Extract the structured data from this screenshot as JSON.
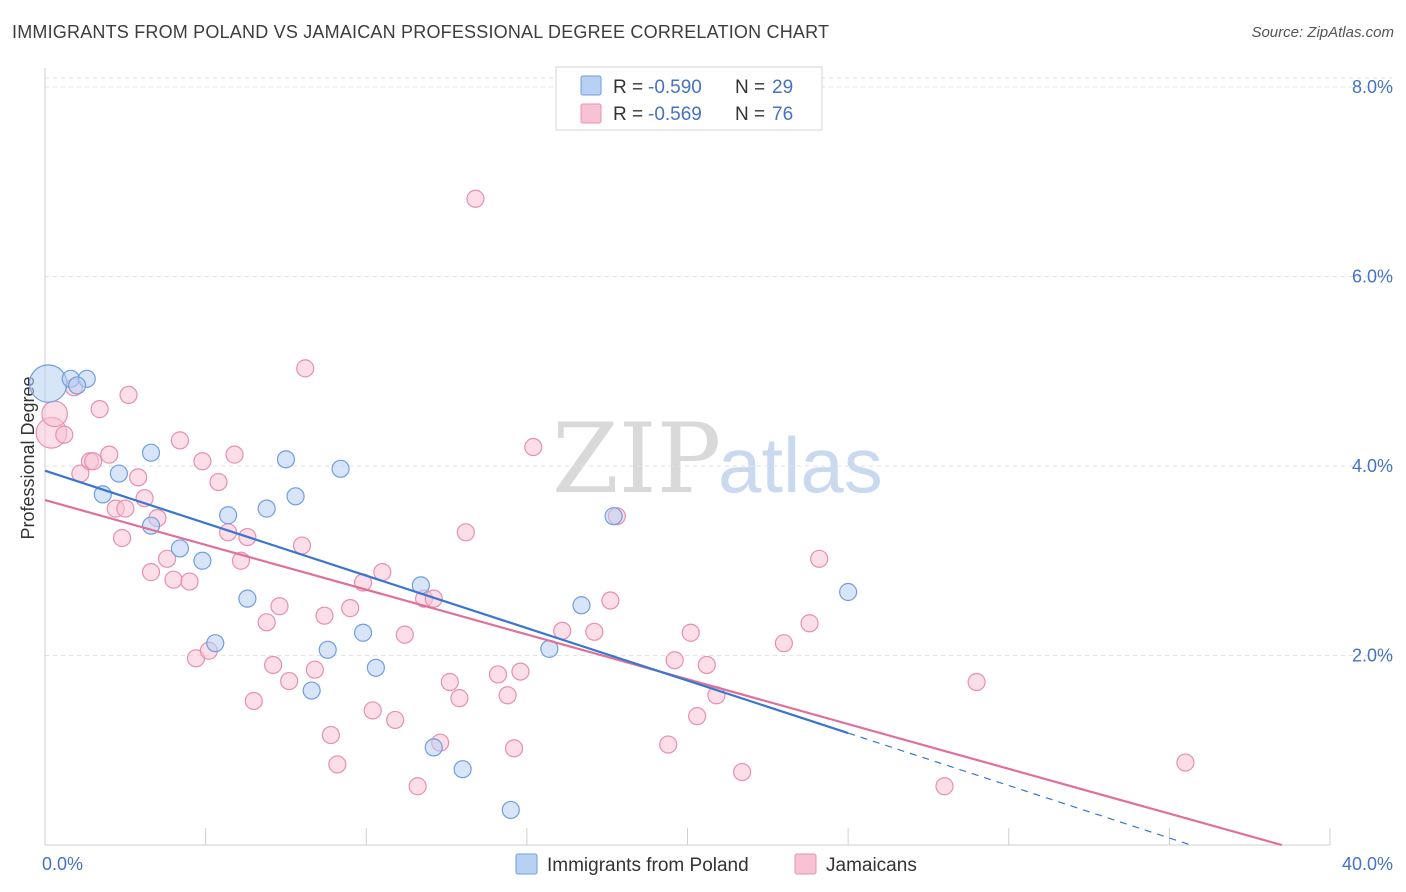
{
  "header": {
    "title": "IMMIGRANTS FROM POLAND VS JAMAICAN PROFESSIONAL DEGREE CORRELATION CHART",
    "source": "Source: ZipAtlas.com"
  },
  "watermark": {
    "zip": "ZIP",
    "atlas": "atlas"
  },
  "legend_top": {
    "rows": [
      {
        "r_label": "R = ",
        "r_value": "-0.590",
        "n_label": "N = ",
        "n_value": "29"
      },
      {
        "r_label": "R = ",
        "r_value": "-0.569",
        "n_label": "N = ",
        "n_value": "76"
      }
    ]
  },
  "legend_bottom": {
    "items": [
      {
        "label": "Immigrants from Poland"
      },
      {
        "label": "Jamaicans"
      }
    ]
  },
  "colors": {
    "poland_fill": "#b8d0f2",
    "poland_stroke": "#6f9ee0",
    "poland_line": "#3a76d0",
    "jamaica_fill": "#f7c3d4",
    "jamaica_stroke": "#e88fb0",
    "jamaica_line": "#e0709a",
    "tick_label": "#4472c4"
  },
  "chart_data": {
    "type": "scatter",
    "ylabel": "Professional Degree",
    "x_tick_labels": [
      "0.0%",
      "40.0%"
    ],
    "y_tick_labels": [
      "2.0%",
      "4.0%",
      "6.0%",
      "8.0%"
    ],
    "y_ticks": [
      2,
      4,
      6,
      8
    ],
    "xlim": [
      0,
      40
    ],
    "ylim": [
      0,
      8.2
    ],
    "grid": true,
    "legend_placement": "top-center",
    "series": [
      {
        "name": "Immigrants from Poland",
        "r": -0.59,
        "n": 29,
        "trend": {
          "x0": 0,
          "y0": 3.95,
          "x1": 40,
          "y1": -0.48,
          "solid_until_x": 25
        },
        "points": [
          [
            0.1,
            4.87,
            2.2
          ],
          [
            0.8,
            4.92,
            1
          ],
          [
            1.3,
            4.92,
            1
          ],
          [
            2.3,
            3.92,
            1
          ],
          [
            1.8,
            3.7,
            1
          ],
          [
            3.3,
            3.37,
            1
          ],
          [
            3.3,
            4.14,
            1
          ],
          [
            4.2,
            3.13,
            1
          ],
          [
            4.9,
            3.0,
            1
          ],
          [
            5.3,
            2.13,
            1
          ],
          [
            5.7,
            3.48,
            1
          ],
          [
            6.3,
            2.6,
            1
          ],
          [
            6.9,
            3.55,
            1
          ],
          [
            7.5,
            4.07,
            1
          ],
          [
            7.8,
            3.68,
            1
          ],
          [
            8.3,
            1.63,
            1
          ],
          [
            8.8,
            2.06,
            1
          ],
          [
            9.2,
            3.97,
            1
          ],
          [
            9.9,
            2.24,
            1
          ],
          [
            10.3,
            1.87,
            1
          ],
          [
            11.7,
            2.74,
            1
          ],
          [
            12.1,
            1.03,
            1
          ],
          [
            13.0,
            0.8,
            1
          ],
          [
            14.5,
            0.37,
            1
          ],
          [
            15.7,
            2.07,
            1
          ],
          [
            16.7,
            2.53,
            1
          ],
          [
            17.7,
            3.47,
            1
          ],
          [
            25.0,
            2.67,
            1
          ],
          [
            1.0,
            4.85,
            1
          ]
        ]
      },
      {
        "name": "Jamaicans",
        "r": -0.569,
        "n": 76,
        "trend": {
          "x0": 0,
          "y0": 3.64,
          "x1": 38.5,
          "y1": 0.0,
          "solid_until_x": 38.5
        },
        "points": [
          [
            0.2,
            4.35,
            1.8
          ],
          [
            0.3,
            4.55,
            1.5
          ],
          [
            0.6,
            4.33,
            1
          ],
          [
            0.9,
            4.83,
            1
          ],
          [
            1.1,
            3.92,
            1
          ],
          [
            1.4,
            4.05,
            1
          ],
          [
            1.5,
            4.05,
            1
          ],
          [
            1.7,
            4.6,
            1
          ],
          [
            2.0,
            4.12,
            1
          ],
          [
            2.2,
            3.55,
            1
          ],
          [
            2.4,
            3.24,
            1
          ],
          [
            2.6,
            4.75,
            1
          ],
          [
            2.9,
            3.88,
            1
          ],
          [
            3.1,
            3.66,
            1
          ],
          [
            3.3,
            2.88,
            1
          ],
          [
            3.5,
            3.45,
            1
          ],
          [
            3.8,
            3.02,
            1
          ],
          [
            4.0,
            2.8,
            1
          ],
          [
            4.2,
            4.27,
            1
          ],
          [
            4.5,
            2.78,
            1
          ],
          [
            4.7,
            1.97,
            1
          ],
          [
            4.9,
            4.05,
            1
          ],
          [
            5.1,
            2.05,
            1
          ],
          [
            5.4,
            3.83,
            1
          ],
          [
            5.7,
            3.3,
            1
          ],
          [
            5.9,
            4.12,
            1
          ],
          [
            6.1,
            3.0,
            1
          ],
          [
            6.3,
            3.25,
            1
          ],
          [
            6.5,
            1.52,
            1
          ],
          [
            6.9,
            2.35,
            1
          ],
          [
            7.1,
            1.9,
            1
          ],
          [
            7.3,
            2.52,
            1
          ],
          [
            7.6,
            1.73,
            1
          ],
          [
            8.0,
            3.16,
            1
          ],
          [
            8.1,
            5.03,
            1
          ],
          [
            8.4,
            1.85,
            1
          ],
          [
            8.7,
            2.42,
            1
          ],
          [
            8.9,
            1.16,
            1
          ],
          [
            9.1,
            0.85,
            1
          ],
          [
            9.5,
            2.5,
            1
          ],
          [
            9.9,
            2.77,
            1
          ],
          [
            10.2,
            1.42,
            1
          ],
          [
            10.5,
            2.88,
            1
          ],
          [
            10.9,
            1.32,
            1
          ],
          [
            11.2,
            2.22,
            1
          ],
          [
            11.6,
            0.62,
            1
          ],
          [
            11.8,
            2.6,
            1
          ],
          [
            12.1,
            2.6,
            1
          ],
          [
            12.3,
            1.08,
            1
          ],
          [
            12.6,
            1.72,
            1
          ],
          [
            12.9,
            1.55,
            1
          ],
          [
            13.1,
            3.3,
            1
          ],
          [
            13.4,
            6.82,
            1
          ],
          [
            14.1,
            1.8,
            1
          ],
          [
            14.4,
            1.58,
            1
          ],
          [
            14.6,
            1.02,
            1
          ],
          [
            14.8,
            1.83,
            1
          ],
          [
            15.2,
            4.2,
            1
          ],
          [
            16.1,
            2.26,
            1
          ],
          [
            17.1,
            2.25,
            1
          ],
          [
            17.6,
            2.58,
            1
          ],
          [
            17.8,
            3.47,
            1
          ],
          [
            19.4,
            1.06,
            1
          ],
          [
            19.6,
            1.95,
            1
          ],
          [
            20.1,
            2.24,
            1
          ],
          [
            20.3,
            1.36,
            1
          ],
          [
            20.6,
            1.9,
            1
          ],
          [
            20.9,
            1.58,
            1
          ],
          [
            21.7,
            0.77,
            1
          ],
          [
            23.0,
            2.13,
            1
          ],
          [
            23.8,
            2.34,
            1
          ],
          [
            24.1,
            3.02,
            1
          ],
          [
            28.0,
            0.62,
            1
          ],
          [
            29.0,
            1.72,
            1
          ],
          [
            35.5,
            0.87,
            1
          ],
          [
            2.5,
            3.55,
            1
          ]
        ]
      }
    ]
  }
}
